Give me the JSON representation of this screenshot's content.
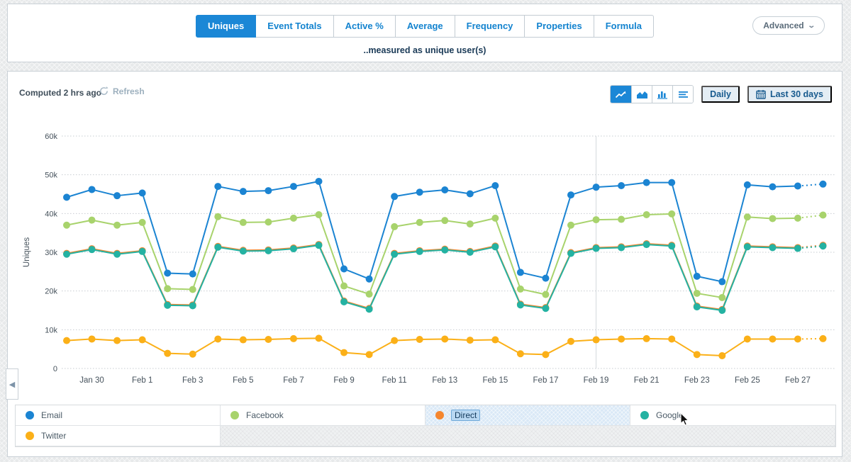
{
  "tabs": {
    "items": [
      {
        "label": "Uniques",
        "active": true
      },
      {
        "label": "Event Totals",
        "active": false
      },
      {
        "label": "Active %",
        "active": false
      },
      {
        "label": "Average",
        "active": false
      },
      {
        "label": "Frequency",
        "active": false
      },
      {
        "label": "Properties",
        "active": false
      },
      {
        "label": "Formula",
        "active": false
      }
    ],
    "subtitle": "..measured as unique user(s)",
    "advanced_label": "Advanced"
  },
  "panel": {
    "computed_label": "Computed 2 hrs ago",
    "refresh_label": "Refresh",
    "granularity_label": "Daily",
    "range_label": "Last 30 days",
    "chart_type_icons": [
      "line-chart-icon",
      "area-chart-icon",
      "bar-chart-icon",
      "stacked-bars-icon"
    ],
    "active_chart_type": "line"
  },
  "legend": {
    "items": [
      {
        "label": "Email",
        "color": "#1b84d2",
        "highlighted": false
      },
      {
        "label": "Facebook",
        "color": "#a8d36c",
        "highlighted": false
      },
      {
        "label": "Direct",
        "color": "#f5862e",
        "highlighted": true
      },
      {
        "label": "Google",
        "color": "#24b2a2",
        "highlighted": false
      },
      {
        "label": "Twitter",
        "color": "#fbb018",
        "highlighted": false
      }
    ]
  },
  "chart_data": {
    "type": "line",
    "title": "",
    "xlabel": "",
    "ylabel": "Uniques",
    "ylim": [
      0,
      60000
    ],
    "y_tick_labels": [
      "0",
      "10k",
      "20k",
      "30k",
      "40k",
      "50k",
      "60k"
    ],
    "grid": "dotted-horizontal",
    "legend_position": "bottom-table",
    "units": "thousands",
    "last_segment_dashed": true,
    "vertical_marker_at": "Feb 19",
    "x": [
      "Jan 29",
      "Jan 30",
      "Jan 31",
      "Feb 1",
      "Feb 2",
      "Feb 3",
      "Feb 4",
      "Feb 5",
      "Feb 6",
      "Feb 7",
      "Feb 8",
      "Feb 9",
      "Feb 10",
      "Feb 11",
      "Feb 12",
      "Feb 13",
      "Feb 14",
      "Feb 15",
      "Feb 16",
      "Feb 17",
      "Feb 18",
      "Feb 19",
      "Feb 20",
      "Feb 21",
      "Feb 22",
      "Feb 23",
      "Feb 24",
      "Feb 25",
      "Feb 26",
      "Feb 27",
      "Feb 28"
    ],
    "x_labeled_every": 2,
    "series": [
      {
        "name": "Email",
        "color": "#1b84d2",
        "values": [
          44.2,
          46.2,
          44.6,
          45.3,
          24.6,
          24.4,
          47.0,
          45.7,
          45.9,
          47.0,
          48.3,
          25.7,
          23.1,
          44.4,
          45.5,
          46.1,
          45.1,
          47.2,
          24.8,
          23.3,
          44.8,
          46.8,
          47.2,
          48.0,
          48.0,
          23.8,
          22.4,
          47.4,
          46.9,
          47.1,
          47.6
        ]
      },
      {
        "name": "Facebook",
        "color": "#a8d36c",
        "values": [
          37.0,
          38.3,
          37.0,
          37.7,
          20.6,
          20.4,
          39.2,
          37.7,
          37.8,
          38.8,
          39.7,
          21.3,
          19.2,
          36.6,
          37.7,
          38.2,
          37.3,
          38.8,
          20.5,
          19.1,
          37.0,
          38.4,
          38.5,
          39.7,
          39.9,
          19.4,
          18.3,
          39.1,
          38.7,
          38.8,
          39.6
        ]
      },
      {
        "name": "Direct",
        "color": "#f5862e",
        "values": [
          29.7,
          30.9,
          29.7,
          30.4,
          16.5,
          16.4,
          31.5,
          30.5,
          30.6,
          31.1,
          32.0,
          17.4,
          15.5,
          29.7,
          30.4,
          30.8,
          30.2,
          31.6,
          16.6,
          15.7,
          29.9,
          31.2,
          31.4,
          32.2,
          31.8,
          16.1,
          15.2,
          31.6,
          31.4,
          31.2,
          31.8
        ]
      },
      {
        "name": "Google",
        "color": "#24b2a2",
        "values": [
          29.5,
          30.7,
          29.5,
          30.2,
          16.3,
          16.2,
          31.3,
          30.3,
          30.4,
          30.9,
          31.8,
          17.2,
          15.3,
          29.5,
          30.2,
          30.6,
          30.0,
          31.4,
          16.4,
          15.5,
          29.7,
          31.0,
          31.2,
          32.0,
          31.6,
          15.9,
          15.0,
          31.4,
          31.2,
          31.0,
          31.6
        ]
      },
      {
        "name": "Twitter",
        "color": "#fbb018",
        "values": [
          7.2,
          7.6,
          7.2,
          7.4,
          3.9,
          3.7,
          7.6,
          7.4,
          7.5,
          7.7,
          7.8,
          4.1,
          3.6,
          7.2,
          7.5,
          7.6,
          7.3,
          7.4,
          3.8,
          3.6,
          7.0,
          7.4,
          7.6,
          7.7,
          7.6,
          3.6,
          3.3,
          7.6,
          7.6,
          7.6,
          7.7
        ]
      }
    ]
  }
}
